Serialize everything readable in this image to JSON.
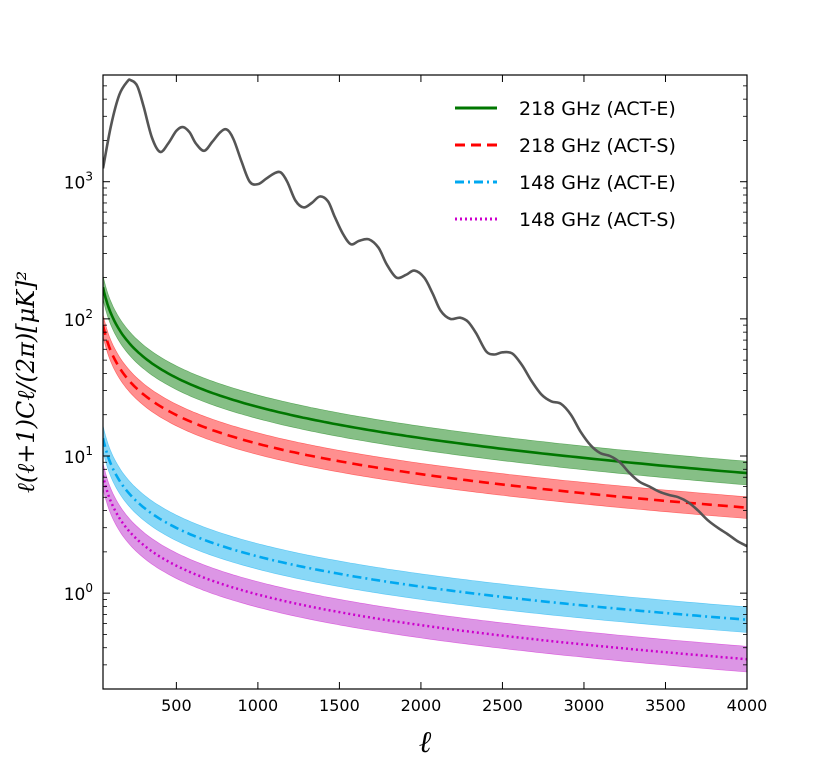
{
  "chart_data": {
    "type": "line",
    "title": "",
    "xlabel": "ℓ",
    "ylabel": "ℓ(ℓ+1)Cℓ/(2π)[μK]²",
    "xscale": "linear",
    "yscale": "log",
    "xlim": [
      50,
      4000
    ],
    "ylim": [
      0.2,
      6000
    ],
    "xticks": [
      500,
      1000,
      1500,
      2000,
      2500,
      3000,
      3500,
      4000
    ],
    "yticks": [
      {
        "value": 1,
        "base": "10",
        "exp": "0"
      },
      {
        "value": 10,
        "base": "10",
        "exp": "1"
      },
      {
        "value": 100,
        "base": "10",
        "exp": "2"
      },
      {
        "value": 1000,
        "base": "10",
        "exp": "3"
      }
    ],
    "legend_position": "top-right",
    "cmb_spectrum": {
      "color": "#555555",
      "x": [
        50,
        100,
        150,
        200,
        220,
        260,
        300,
        350,
        400,
        450,
        500,
        540,
        580,
        620,
        670,
        720,
        770,
        810,
        850,
        900,
        950,
        1000,
        1050,
        1100,
        1140,
        1180,
        1230,
        1280,
        1330,
        1380,
        1430,
        1470,
        1520,
        1570,
        1620,
        1680,
        1740,
        1790,
        1850,
        1910,
        1960,
        2020,
        2070,
        2120,
        2180,
        2240,
        2290,
        2340,
        2400,
        2450,
        2500,
        2560,
        2620,
        2680,
        2740,
        2800,
        2860,
        2920,
        2980,
        3040,
        3100,
        3160,
        3220,
        3280,
        3340,
        3400,
        3460,
        3520,
        3580,
        3640,
        3700,
        3760,
        3820,
        3880,
        3940,
        4000
      ],
      "values": [
        1250,
        2600,
        4300,
        5400,
        5500,
        5000,
        3500,
        2100,
        1650,
        1900,
        2350,
        2500,
        2300,
        1900,
        1680,
        1950,
        2300,
        2400,
        2050,
        1400,
        1000,
        960,
        1050,
        1150,
        1170,
        1000,
        730,
        650,
        700,
        780,
        720,
        560,
        420,
        350,
        370,
        380,
        330,
        250,
        200,
        210,
        225,
        200,
        155,
        115,
        100,
        102,
        95,
        78,
        58,
        55,
        57,
        56,
        46,
        35,
        28,
        25,
        24,
        20,
        15,
        12,
        10.5,
        10.0,
        9.0,
        7.5,
        6.5,
        6.0,
        5.5,
        5.2,
        5.0,
        4.6,
        4.0,
        3.4,
        3.0,
        2.7,
        2.4,
        2.2
      ]
    },
    "noise_model": {
      "x_min": 50,
      "x_max": 4000,
      "exponent": -0.63
    },
    "series": [
      {
        "name": "218 GHz (ACT-E)",
        "color": "#007700",
        "fill": "#228B22",
        "style": "solid",
        "amp_at_50": 170,
        "value_at_4000": 7.5,
        "band_factor": 1.22
      },
      {
        "name": "218 GHz (ACT-S)",
        "color": "#ff0000",
        "fill": "#ff3333",
        "style": "dashed",
        "amp_at_50": 90,
        "value_at_4000": 4.2,
        "band_factor": 1.2
      },
      {
        "name": "148 GHz (ACT-E)",
        "color": "#00a8f0",
        "fill": "#28b8f0",
        "style": "dashdot",
        "amp_at_50": 13.5,
        "value_at_4000": 0.64,
        "band_factor": 1.24
      },
      {
        "name": "148 GHz (ACT-S)",
        "color": "#cc00cc",
        "fill": "#c040d0",
        "style": "dotted",
        "amp_at_50": 7.2,
        "value_at_4000": 0.33,
        "band_factor": 1.24
      }
    ]
  }
}
